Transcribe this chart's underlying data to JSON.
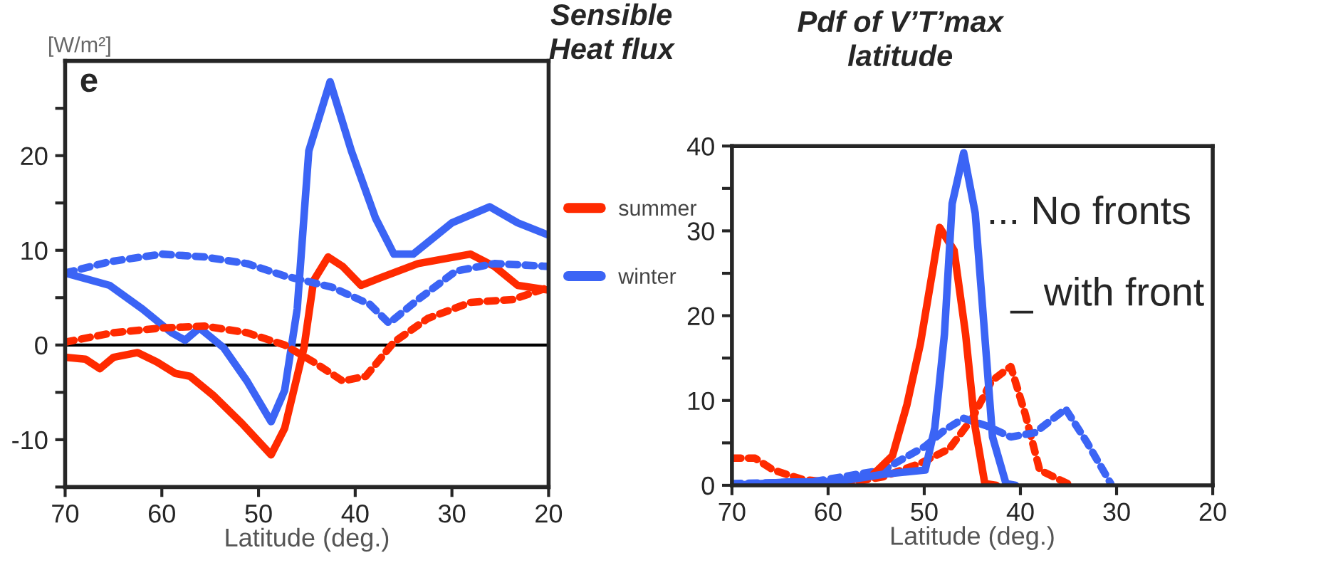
{
  "chart_data": [
    {
      "type": "line",
      "title": "Sensible\nHeat flux",
      "ylabel": "[W/m²]",
      "xlabel": "Latitude (deg.)",
      "xlim": [
        70,
        20
      ],
      "xticks": [
        70,
        60,
        50,
        40,
        30,
        20
      ],
      "ylim": [
        -15,
        30
      ],
      "yticks": [
        {
          "value": -15,
          "label": null
        },
        -10,
        {
          "value": -5,
          "label": null
        },
        0,
        {
          "value": 5,
          "label": null
        },
        10,
        {
          "value": 15,
          "label": null
        },
        20,
        {
          "value": 25,
          "label": null
        }
      ],
      "grid": false,
      "legend": "right",
      "annotations": [
        "e"
      ],
      "ref_lines": [
        {
          "axis": "y",
          "value": 0,
          "color": "#000000"
        }
      ],
      "series": [
        {
          "name": "summer",
          "color": "#ff2a00",
          "line_style": "solid",
          "x": [
            70,
            67.9,
            66.4,
            65,
            62.5,
            60.5,
            58.6,
            57.1,
            54.7,
            51.7,
            48.7,
            47.3,
            45.3,
            44.3,
            42.8,
            41.3,
            39.4,
            37.4,
            33.5,
            28.1,
            25.6,
            23.2,
            20
          ],
          "values": [
            -1.3,
            -1.5,
            -2.5,
            -1.3,
            -0.8,
            -1.8,
            -3.0,
            -3.3,
            -5.3,
            -8.3,
            -11.6,
            -8.8,
            -0.3,
            6.8,
            9.3,
            8.3,
            6.3,
            7.1,
            8.6,
            9.6,
            8.3,
            6.3,
            5.8
          ]
        },
        {
          "name": "winter",
          "color": "#3b64f5",
          "line_style": "solid",
          "x": [
            70,
            65.4,
            62,
            59,
            57.6,
            56.1,
            53.6,
            51.2,
            48.7,
            47.3,
            46,
            44.8,
            42.6,
            40.4,
            37.9,
            36,
            34,
            30,
            26.1,
            23.2,
            20
          ],
          "values": [
            7.6,
            6.3,
            3.8,
            1.3,
            0.5,
            1.8,
            -0.3,
            -3.8,
            -8.1,
            -4.8,
            3.8,
            20.5,
            27.8,
            20.5,
            13.4,
            9.6,
            9.6,
            12.9,
            14.6,
            12.9,
            11.6
          ]
        },
        {
          "color": "#ff2a00",
          "line_style": "dashed",
          "x": [
            70,
            65,
            60,
            55.6,
            51.2,
            47.3,
            44.3,
            41.3,
            38.9,
            36,
            32.5,
            28.1,
            23.7,
            20
          ],
          "values": [
            0.3,
            1.3,
            1.8,
            2.0,
            1.3,
            0,
            -1.8,
            -3.8,
            -3.3,
            0.3,
            2.8,
            4.5,
            4.8,
            6.1
          ]
        },
        {
          "color": "#3b64f5",
          "line_style": "dashed",
          "x": [
            70,
            65.4,
            60,
            55.6,
            51.2,
            47.3,
            42.4,
            38.5,
            36.5,
            33.5,
            29.6,
            25.6,
            20
          ],
          "values": [
            7.6,
            8.8,
            9.6,
            9.3,
            8.6,
            7.3,
            6.1,
            4.3,
            2.3,
            4.8,
            7.8,
            8.6,
            8.3
          ]
        }
      ]
    },
    {
      "type": "line",
      "title": "Pdf of V’T’max\nlatitude",
      "xlabel": "Latitude (deg.)",
      "xlim": [
        70,
        20
      ],
      "xticks": [
        70,
        60,
        50,
        40,
        30,
        20
      ],
      "ylim": [
        0,
        40
      ],
      "yticks": [
        0,
        {
          "value": 5,
          "label": null
        },
        10,
        {
          "value": 15,
          "label": null
        },
        20,
        {
          "value": 25,
          "label": null
        },
        30,
        {
          "value": 35,
          "label": null
        },
        40
      ],
      "grid": false,
      "annotations": [
        "... No fronts",
        "_ with front"
      ],
      "series": [
        {
          "color": "#ff2a00",
          "line_style": "dashed",
          "x": [
            70,
            67.6,
            65.7,
            62.7,
            58.3,
            54.3,
            50.4,
            47.4,
            45,
            43,
            41,
            39.5,
            38,
            35.1
          ],
          "values": [
            3.2,
            3.2,
            1.8,
            0.7,
            0.2,
            1.0,
            2.6,
            4.3,
            7.9,
            12.3,
            14.0,
            8.4,
            1.8,
            0.2
          ]
        },
        {
          "color": "#3b64f5",
          "line_style": "dashed",
          "x": [
            70,
            61.7,
            54.3,
            49.9,
            47.9,
            45.9,
            43.5,
            41,
            38.5,
            35.3,
            33.1,
            30.6
          ],
          "values": [
            0.2,
            0.4,
            1.8,
            4.6,
            6.5,
            7.9,
            7.0,
            5.7,
            6.2,
            9.0,
            5.1,
            0.2
          ]
        },
        {
          "color": "#ff2a00",
          "line_style": "solid",
          "x": [
            55.3,
            53.3,
            51.8,
            50.4,
            49.1,
            48.4,
            46.9,
            45.7,
            44.7,
            43.7,
            42.5
          ],
          "values": [
            1.3,
            3.5,
            9.5,
            16.7,
            25.5,
            30.4,
            27.7,
            17.8,
            6.8,
            0.2,
            0
          ]
        },
        {
          "color": "#3b64f5",
          "line_style": "solid",
          "x": [
            70,
            64.2,
            59.2,
            54.3,
            49.9,
            48.9,
            47.9,
            47.1,
            45.9,
            44.7,
            43.9,
            42.9,
            41.5,
            40.5
          ],
          "values": [
            0,
            0.4,
            0.4,
            1.3,
            1.8,
            6.8,
            17.8,
            33.2,
            39.2,
            32.1,
            20.5,
            5.7,
            0.2,
            0
          ]
        }
      ]
    }
  ]
}
